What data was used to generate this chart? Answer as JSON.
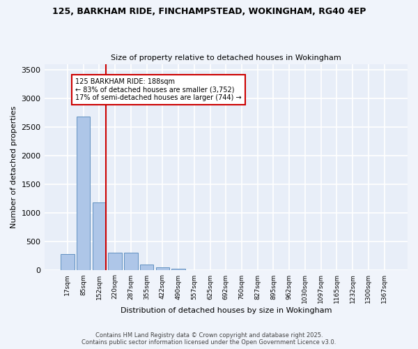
{
  "title_line1": "125, BARKHAM RIDE, FINCHAMPSTEAD, WOKINGHAM, RG40 4EP",
  "title_line2": "Size of property relative to detached houses in Wokingham",
  "xlabel": "Distribution of detached houses by size in Wokingham",
  "ylabel": "Number of detached properties",
  "categories": [
    "17sqm",
    "85sqm",
    "152sqm",
    "220sqm",
    "287sqm",
    "355sqm",
    "422sqm",
    "490sqm",
    "557sqm",
    "625sqm",
    "692sqm",
    "760sqm",
    "827sqm",
    "895sqm",
    "962sqm",
    "1030sqm",
    "1097sqm",
    "1165sqm",
    "1232sqm",
    "1300sqm",
    "1367sqm"
  ],
  "values": [
    280,
    2680,
    1190,
    305,
    305,
    100,
    55,
    35,
    0,
    0,
    0,
    0,
    0,
    0,
    0,
    0,
    0,
    0,
    0,
    0,
    0
  ],
  "bar_color": "#aec6e8",
  "bar_edge_color": "#6090c0",
  "vline_color": "#cc0000",
  "annotation_text": "125 BARKHAM RIDE: 188sqm\n← 83% of detached houses are smaller (3,752)\n17% of semi-detached houses are larger (744) →",
  "annotation_box_color": "#cc0000",
  "ylim": [
    0,
    3600
  ],
  "yticks": [
    0,
    500,
    1000,
    1500,
    2000,
    2500,
    3000,
    3500
  ],
  "background_color": "#e8eef8",
  "fig_background_color": "#f0f4fb",
  "grid_color": "#ffffff",
  "footer_line1": "Contains HM Land Registry data © Crown copyright and database right 2025.",
  "footer_line2": "Contains public sector information licensed under the Open Government Licence v3.0."
}
